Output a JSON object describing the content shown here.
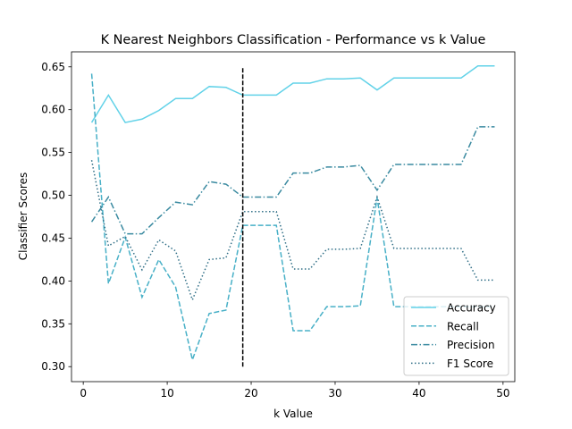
{
  "chart_data": {
    "type": "line",
    "title": "K Nearest Neighbors Classification - Performance vs k Value",
    "xlabel": "k Value",
    "ylabel": "Classifier Scores",
    "xlim": [
      -1.4,
      51.4
    ],
    "ylim": [
      0.2825,
      0.6675
    ],
    "xticks": [
      0,
      10,
      20,
      30,
      40,
      50
    ],
    "yticks": [
      0.3,
      0.35,
      0.4,
      0.45,
      0.5,
      0.55,
      0.6,
      0.65
    ],
    "ytick_labels": [
      "0.30",
      "0.35",
      "0.40",
      "0.45",
      "0.50",
      "0.55",
      "0.60",
      "0.65"
    ],
    "grid": false,
    "legend_position": "lower-right",
    "x": [
      1,
      3,
      5,
      7,
      9,
      11,
      13,
      15,
      17,
      19,
      21,
      23,
      25,
      27,
      29,
      31,
      33,
      35,
      37,
      39,
      41,
      43,
      45,
      47,
      49
    ],
    "series": [
      {
        "name": "Accuracy",
        "style": "solid",
        "color": "#62d2e8",
        "values": [
          0.585,
          0.617,
          0.585,
          0.589,
          0.599,
          0.613,
          0.613,
          0.627,
          0.626,
          0.617,
          0.617,
          0.617,
          0.631,
          0.631,
          0.636,
          0.636,
          0.637,
          0.623,
          0.637,
          0.637,
          0.637,
          0.637,
          0.637,
          0.651,
          0.651
        ]
      },
      {
        "name": "Recall",
        "style": "dashed",
        "color": "#48b0c7",
        "values": [
          0.642,
          0.397,
          0.451,
          0.381,
          0.425,
          0.393,
          0.308,
          0.362,
          0.366,
          0.465,
          0.465,
          0.465,
          0.342,
          0.342,
          0.37,
          0.37,
          0.371,
          0.497,
          0.37,
          0.37,
          0.37,
          0.37,
          0.37,
          0.37,
          0.37
        ]
      },
      {
        "name": "Precision",
        "style": "dashdot",
        "color": "#3a8aa0",
        "values": [
          0.469,
          0.498,
          0.455,
          0.455,
          0.474,
          0.492,
          0.489,
          0.516,
          0.513,
          0.498,
          0.498,
          0.498,
          0.526,
          0.526,
          0.533,
          0.533,
          0.535,
          0.506,
          0.536,
          0.536,
          0.536,
          0.536,
          0.536,
          0.58,
          0.58
        ]
      },
      {
        "name": "F1 Score",
        "style": "dotted",
        "color": "#2f6e86",
        "values": [
          0.541,
          0.441,
          0.452,
          0.413,
          0.448,
          0.435,
          0.378,
          0.425,
          0.427,
          0.481,
          0.481,
          0.481,
          0.414,
          0.414,
          0.437,
          0.437,
          0.438,
          0.498,
          0.438,
          0.438,
          0.438,
          0.438,
          0.438,
          0.401,
          0.401
        ]
      }
    ],
    "vline": {
      "x": 19,
      "ymin": 0.3,
      "ymax": 0.65,
      "style": "dashed",
      "color": "#000000"
    }
  }
}
